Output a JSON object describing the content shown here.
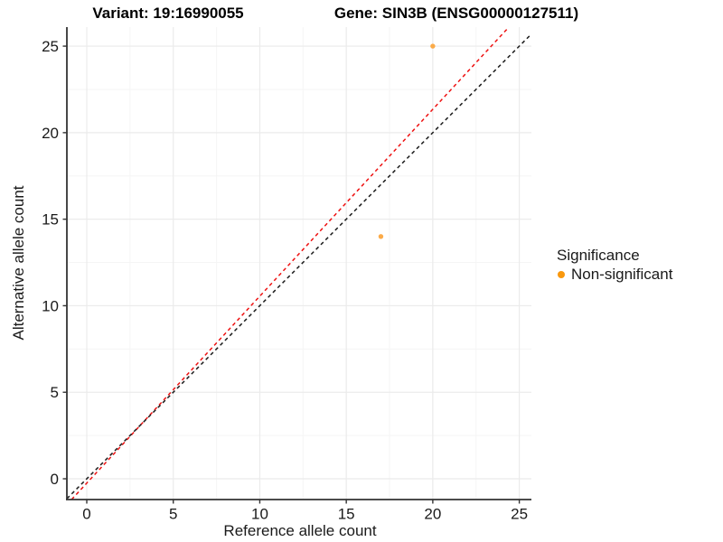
{
  "titles": {
    "variant": "Variant: 19:16990055",
    "gene": "Gene: SIN3B (ENSG00000127511)"
  },
  "legend": {
    "title": "Significance",
    "items": [
      {
        "label": "Non-significant",
        "color": "#F9980E"
      }
    ],
    "position": "right"
  },
  "chart_data": {
    "type": "scatter",
    "title": "Variant: 19:16990055    Gene: SIN3B (ENSG00000127511)",
    "xlabel": "Reference allele count",
    "ylabel": "Alternative allele count",
    "xlim": [
      -1.15,
      25.7
    ],
    "ylim": [
      -1.2,
      26.1
    ],
    "x_ticks": [
      0,
      5,
      10,
      15,
      20,
      25
    ],
    "y_ticks": [
      0,
      5,
      10,
      15,
      20,
      25
    ],
    "minor_step": 2.5,
    "grid": true,
    "series": [
      {
        "name": "Non-significant",
        "points": [
          {
            "x": 17,
            "y": 14
          },
          {
            "x": 20,
            "y": 25
          }
        ],
        "color": "#FBAB49"
      }
    ],
    "lines": [
      {
        "name": "fit-line",
        "slope": 1.08,
        "intercept": -0.25,
        "color": "#EE1111",
        "dashed": true
      },
      {
        "name": "identity-line",
        "slope": 1.0,
        "intercept": 0,
        "color": "#1a1a1a",
        "dashed": true
      }
    ],
    "style": {
      "axis_color": "#333333",
      "tick_label_color": "#1a1a1a",
      "grid_major_color": "#ebebeb",
      "grid_minor_color": "#f5f5f5"
    }
  }
}
